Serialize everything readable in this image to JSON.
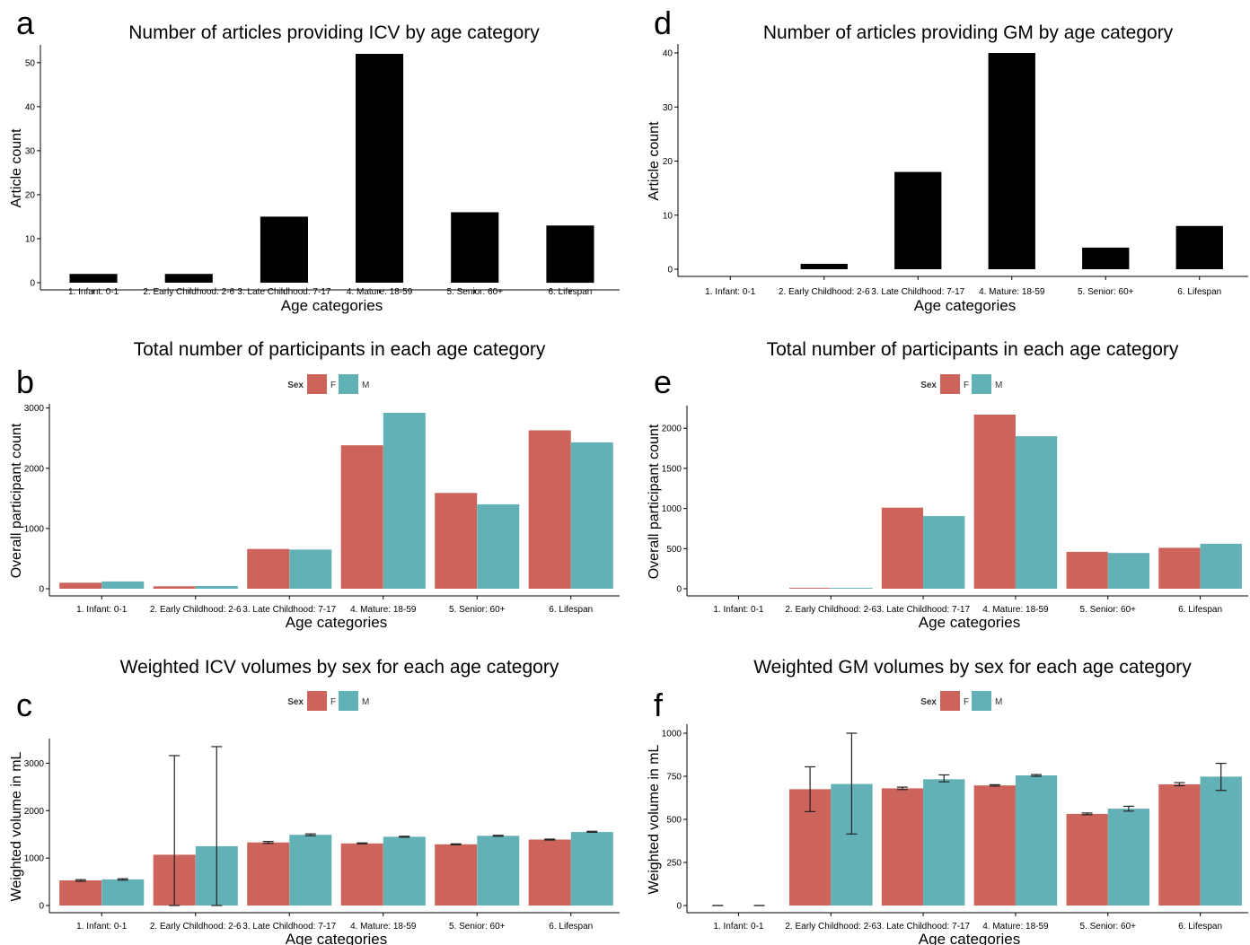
{
  "panel_letters": [
    "a",
    "b",
    "c",
    "d",
    "e",
    "f"
  ],
  "colors": {
    "F": "#cd645b",
    "M": "#62b1b6",
    "count": "#000000"
  },
  "chart_data": [
    {
      "id": "a",
      "type": "bar",
      "title": "Number of articles providing ICV by age category",
      "xlabel": "Age categories",
      "ylabel": "Article count",
      "categories": [
        "1. Infant: 0-1",
        "2. Early Childhood: 2-6",
        "3. Late Childhood: 7-17",
        "4. Mature: 18-59",
        "5. Senior: 60+",
        "6. Lifespan"
      ],
      "ylim": [
        0,
        52
      ],
      "yticks": [
        0,
        10,
        20,
        30,
        40,
        50
      ],
      "series": [
        {
          "values": [
            2,
            2,
            15,
            52,
            16,
            13
          ],
          "color": "#000000"
        }
      ]
    },
    {
      "id": "b",
      "type": "bar",
      "title": "Total number of participants in each age category",
      "xlabel": "Age categories",
      "ylabel": "Overall participant count",
      "legend": {
        "title": "Sex",
        "placement": "top-center"
      },
      "categories": [
        "1. Infant: 0-1",
        "2. Early Childhood: 2-6",
        "3. Late Childhood: 7-17",
        "4. Mature: 18-59",
        "5. Senior: 60+",
        "6. Lifespan"
      ],
      "ylim": [
        0,
        2920
      ],
      "yticks": [
        0,
        1000,
        2000,
        3000
      ],
      "series": [
        {
          "name": "F",
          "values": [
            100,
            40,
            660,
            2380,
            1590,
            2630
          ],
          "color": "#cd645b"
        },
        {
          "name": "M",
          "values": [
            120,
            45,
            650,
            2920,
            1400,
            2430
          ],
          "color": "#62b1b6"
        }
      ]
    },
    {
      "id": "c",
      "type": "bar",
      "title": "Weighted ICV volumes by sex for each age category",
      "xlabel": "Age categories",
      "ylabel": "Weighted volume in mL",
      "legend": {
        "title": "Sex",
        "placement": "top-center"
      },
      "categories": [
        "1. Infant: 0-1",
        "2. Early Childhood: 2-6",
        "3. Late Childhood: 7-17",
        "4. Mature: 18-59",
        "5. Senior: 60+",
        "6. Lifespan"
      ],
      "ylim": [
        0,
        3330
      ],
      "yticks": [
        0,
        1000,
        2000,
        3000
      ],
      "series": [
        {
          "name": "F",
          "values": [
            530,
            1070,
            1330,
            1310,
            1290,
            1390
          ],
          "err_low": [
            510,
            0,
            1310,
            1300,
            1280,
            1380
          ],
          "err_high": [
            545,
            3160,
            1350,
            1320,
            1300,
            1400
          ],
          "color": "#cd645b"
        },
        {
          "name": "M",
          "values": [
            550,
            1250,
            1490,
            1450,
            1470,
            1550
          ],
          "err_low": [
            535,
            0,
            1470,
            1440,
            1460,
            1545
          ],
          "err_high": [
            565,
            3350,
            1510,
            1460,
            1480,
            1565
          ],
          "color": "#62b1b6"
        }
      ]
    },
    {
      "id": "d",
      "type": "bar",
      "title": "Number of articles providing GM by age category",
      "xlabel": "Age categories",
      "ylabel": "Article count",
      "categories": [
        "1. Infant: 0-1",
        "2. Early Childhood: 2-6",
        "3. Late Childhood: 7-17",
        "4. Mature: 18-59",
        "5. Senior: 60+",
        "6. Lifespan"
      ],
      "ylim": [
        0,
        40
      ],
      "yticks": [
        0,
        10,
        20,
        30,
        40
      ],
      "series": [
        {
          "values": [
            0,
            1,
            18,
            40,
            4,
            8
          ],
          "color": "#000000"
        }
      ]
    },
    {
      "id": "e",
      "type": "bar",
      "title": "Total number of participants in each age category",
      "xlabel": "Age categories",
      "ylabel": "Overall participant count",
      "legend": {
        "title": "Sex",
        "placement": "top-center"
      },
      "categories": [
        "1. Infant: 0-1",
        "2. Early Childhood: 2-6",
        "3. Late Childhood: 7-17",
        "4. Mature: 18-59",
        "5. Senior: 60+",
        "6. Lifespan"
      ],
      "ylim": [
        0,
        2170
      ],
      "yticks": [
        0,
        500,
        1000,
        1500,
        2000
      ],
      "series": [
        {
          "name": "F",
          "values": [
            0,
            10,
            1010,
            2170,
            460,
            510
          ],
          "color": "#cd645b"
        },
        {
          "name": "M",
          "values": [
            0,
            10,
            905,
            1900,
            445,
            560
          ],
          "color": "#62b1b6"
        }
      ]
    },
    {
      "id": "f",
      "type": "bar",
      "title": "Weighted GM volumes by sex for each age category",
      "xlabel": "Age categories",
      "ylabel": "Weighted volume in mL",
      "legend": {
        "title": "Sex",
        "placement": "top-center"
      },
      "categories": [
        "1. Infant: 0-1",
        "2. Early Childhood: 2-6",
        "3. Late Childhood: 7-17",
        "4. Mature: 18-59",
        "5. Senior: 60+",
        "6. Lifespan"
      ],
      "ylim": [
        0,
        1000
      ],
      "yticks": [
        0,
        250,
        500,
        750,
        1000
      ],
      "series": [
        {
          "name": "F",
          "values": [
            0,
            675,
            680,
            697,
            532,
            703
          ],
          "err_low": [
            0,
            545,
            673,
            693,
            527,
            695
          ],
          "err_high": [
            0,
            805,
            687,
            701,
            537,
            713
          ],
          "color": "#cd645b"
        },
        {
          "name": "M",
          "values": [
            0,
            705,
            733,
            755,
            562,
            748
          ],
          "err_low": [
            0,
            415,
            718,
            750,
            548,
            668
          ],
          "err_high": [
            0,
            1000,
            758,
            760,
            576,
            825
          ],
          "color": "#62b1b6"
        }
      ]
    }
  ]
}
